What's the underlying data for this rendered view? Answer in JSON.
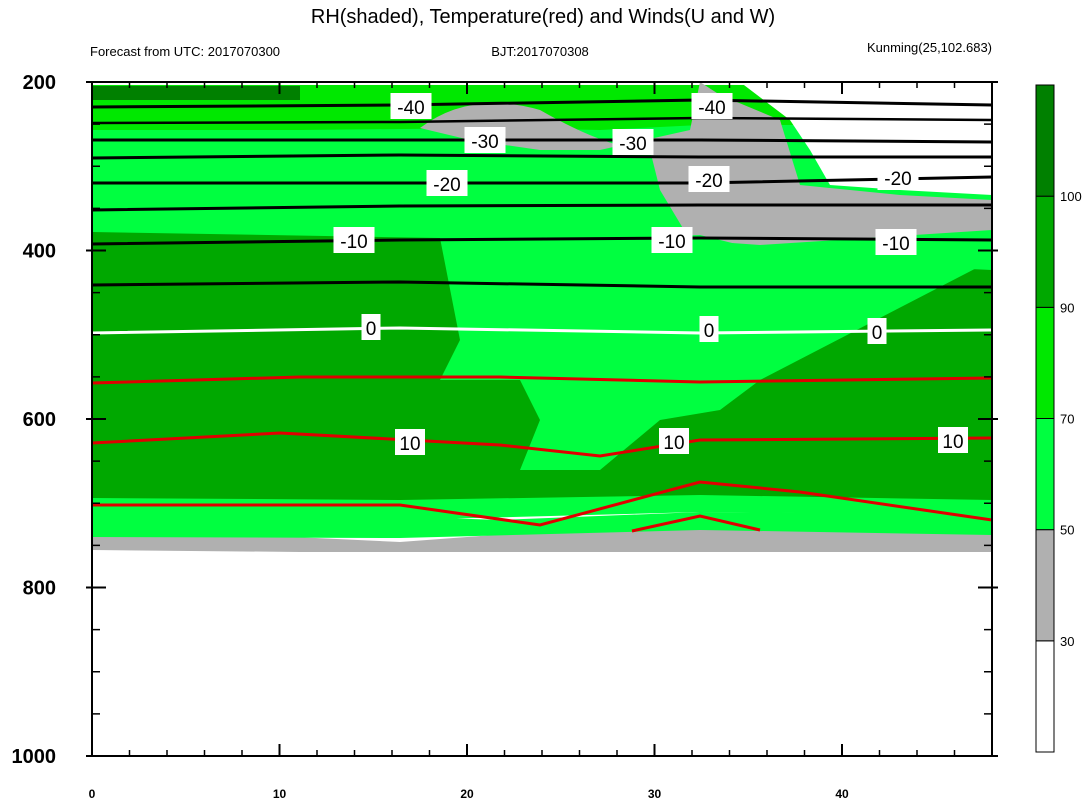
{
  "chart_data": {
    "type": "heatmap",
    "title": "RH(shaded), Temperature(red) and Winds(U and W)",
    "subtitle_left": "Forecast from UTC: 2017070300",
    "subtitle_center": "BJT:2017070308",
    "subtitle_right": "Kunming(25,102.683)",
    "xlim": [
      0,
      48
    ],
    "ylim": [
      1000,
      200
    ],
    "x_ticks": [
      "0",
      "10",
      "20",
      "30",
      "40"
    ],
    "y_ticks": [
      "200",
      "400",
      "600",
      "800",
      "1000"
    ],
    "colorbar": {
      "ticks": [
        "30",
        "50",
        "70",
        "90",
        "100"
      ],
      "colors": [
        "#ffffff",
        "#b0b0b0",
        "#00ff40",
        "#00e800",
        "#00a800",
        "#008000"
      ]
    },
    "temperature_contours": [
      {
        "label": "-40",
        "level": 230,
        "color": "#000000"
      },
      {
        "label": "-30",
        "level": 285,
        "color": "#000000"
      },
      {
        "label": "-20",
        "level": 335,
        "color": "#000000"
      },
      {
        "label": "-10",
        "level": 415,
        "color": "#000000"
      },
      {
        "label": "0",
        "level": 532,
        "color": "#ffffff"
      },
      {
        "label": "10",
        "level": 682,
        "color": "#ff0000"
      }
    ]
  }
}
